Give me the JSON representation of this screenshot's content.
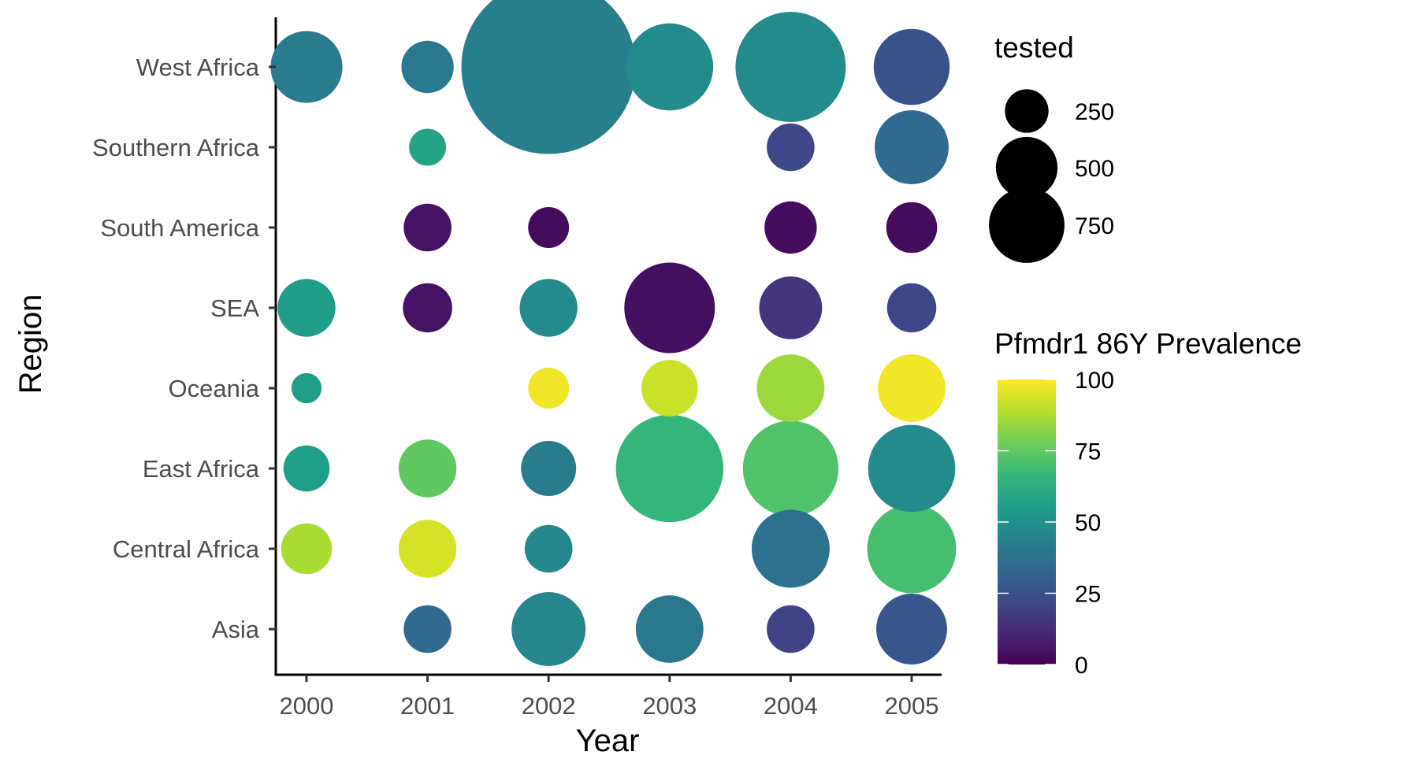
{
  "chart_data": {
    "type": "scatter",
    "subtype": "bubble",
    "xlabel": "Year",
    "ylabel": "Region",
    "x_categories": [
      "2000",
      "2001",
      "2002",
      "2003",
      "2004",
      "2005"
    ],
    "y_categories": [
      "Asia",
      "Central Africa",
      "East Africa",
      "Oceania",
      "SEA",
      "South America",
      "Southern Africa",
      "West Africa"
    ],
    "grid": false,
    "legend_position": "right",
    "size_legend": {
      "title": "tested",
      "values": [
        250,
        500,
        750
      ],
      "labels": [
        "250",
        "500",
        "750"
      ]
    },
    "color_legend": {
      "title": "Pfmdr1 86Y Prevalence",
      "range": [
        0,
        100
      ],
      "ticks": [
        0,
        25,
        50,
        75,
        100
      ],
      "labels": [
        "0",
        "25",
        "50",
        "75",
        "100"
      ],
      "colormap": "viridis",
      "stops": [
        "#440154",
        "#482878",
        "#3e4989",
        "#31688e",
        "#26828e",
        "#1f9e89",
        "#35b779",
        "#6ece58",
        "#b5de2b",
        "#fde725"
      ]
    },
    "points": [
      {
        "x": "2000",
        "y": "West Africa",
        "tested": 170,
        "prevalence": 42
      },
      {
        "x": "2001",
        "y": "West Africa",
        "tested": 90,
        "prevalence": 40
      },
      {
        "x": "2002",
        "y": "West Africa",
        "tested": 1000,
        "prevalence": 43
      },
      {
        "x": "2003",
        "y": "West Africa",
        "tested": 250,
        "prevalence": 48
      },
      {
        "x": "2004",
        "y": "West Africa",
        "tested": 400,
        "prevalence": 48
      },
      {
        "x": "2005",
        "y": "West Africa",
        "tested": 190,
        "prevalence": 25
      },
      {
        "x": "2001",
        "y": "Southern Africa",
        "tested": 45,
        "prevalence": 58
      },
      {
        "x": "2004",
        "y": "Southern Africa",
        "tested": 75,
        "prevalence": 22
      },
      {
        "x": "2005",
        "y": "Southern Africa",
        "tested": 180,
        "prevalence": 34
      },
      {
        "x": "2001",
        "y": "South America",
        "tested": 75,
        "prevalence": 5
      },
      {
        "x": "2002",
        "y": "South America",
        "tested": 55,
        "prevalence": 3
      },
      {
        "x": "2004",
        "y": "South America",
        "tested": 90,
        "prevalence": 3
      },
      {
        "x": "2005",
        "y": "South America",
        "tested": 85,
        "prevalence": 3
      },
      {
        "x": "2000",
        "y": "SEA",
        "tested": 110,
        "prevalence": 55
      },
      {
        "x": "2001",
        "y": "SEA",
        "tested": 80,
        "prevalence": 5
      },
      {
        "x": "2002",
        "y": "SEA",
        "tested": 110,
        "prevalence": 48
      },
      {
        "x": "2003",
        "y": "SEA",
        "tested": 270,
        "prevalence": 4
      },
      {
        "x": "2004",
        "y": "SEA",
        "tested": 130,
        "prevalence": 15
      },
      {
        "x": "2005",
        "y": "SEA",
        "tested": 80,
        "prevalence": 22
      },
      {
        "x": "2000",
        "y": "Oceania",
        "tested": 30,
        "prevalence": 56
      },
      {
        "x": "2002",
        "y": "Oceania",
        "tested": 55,
        "prevalence": 98
      },
      {
        "x": "2003",
        "y": "Oceania",
        "tested": 105,
        "prevalence": 92
      },
      {
        "x": "2004",
        "y": "Oceania",
        "tested": 150,
        "prevalence": 85
      },
      {
        "x": "2005",
        "y": "Oceania",
        "tested": 150,
        "prevalence": 98
      },
      {
        "x": "2000",
        "y": "East Africa",
        "tested": 70,
        "prevalence": 56
      },
      {
        "x": "2001",
        "y": "East Africa",
        "tested": 110,
        "prevalence": 75
      },
      {
        "x": "2002",
        "y": "East Africa",
        "tested": 100,
        "prevalence": 42
      },
      {
        "x": "2003",
        "y": "East Africa",
        "tested": 380,
        "prevalence": 66
      },
      {
        "x": "2004",
        "y": "East Africa",
        "tested": 300,
        "prevalence": 72
      },
      {
        "x": "2005",
        "y": "East Africa",
        "tested": 250,
        "prevalence": 48
      },
      {
        "x": "2000",
        "y": "Central Africa",
        "tested": 85,
        "prevalence": 87
      },
      {
        "x": "2001",
        "y": "Central Africa",
        "tested": 110,
        "prevalence": 94
      },
      {
        "x": "2002",
        "y": "Central Africa",
        "tested": 75,
        "prevalence": 46
      },
      {
        "x": "2004",
        "y": "Central Africa",
        "tested": 200,
        "prevalence": 37
      },
      {
        "x": "2005",
        "y": "Central Africa",
        "tested": 260,
        "prevalence": 70
      },
      {
        "x": "2001",
        "y": "Asia",
        "tested": 75,
        "prevalence": 34
      },
      {
        "x": "2002",
        "y": "Asia",
        "tested": 180,
        "prevalence": 46
      },
      {
        "x": "2003",
        "y": "Asia",
        "tested": 150,
        "prevalence": 40
      },
      {
        "x": "2004",
        "y": "Asia",
        "tested": 75,
        "prevalence": 20
      },
      {
        "x": "2005",
        "y": "Asia",
        "tested": 165,
        "prevalence": 27
      }
    ]
  }
}
